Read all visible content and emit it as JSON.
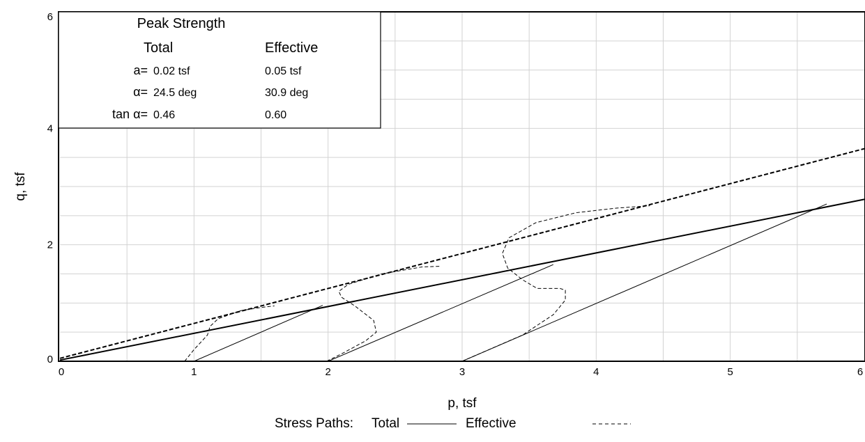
{
  "chart_data": {
    "type": "line",
    "xlabel": "p, tsf",
    "ylabel": "q, tsf",
    "xlim": [
      0,
      6
    ],
    "ylim": [
      0,
      6
    ],
    "x_ticks": [
      "0",
      "1",
      "2",
      "3",
      "4",
      "5",
      "6"
    ],
    "y_ticks": [
      "0",
      "2",
      "4",
      "6"
    ],
    "grid": true,
    "legend": {
      "position": "bottom-center",
      "prefix": "Stress Paths:",
      "total_label": "Total",
      "effective_label": "Effective"
    },
    "strength_table": {
      "title": "Peak Strength",
      "col_total": "Total",
      "col_effective": "Effective",
      "rows": [
        {
          "label": "a=",
          "total": "0.02 tsf",
          "effective": "0.05 tsf"
        },
        {
          "label": "α=",
          "total": "24.5 deg",
          "effective": "30.9 deg"
        },
        {
          "label": "tan α=",
          "total": "0.46",
          "effective": "0.60"
        }
      ]
    },
    "envelopes": [
      {
        "name": "Total",
        "style": "solid",
        "intercept": 0.02,
        "slope": 0.46
      },
      {
        "name": "Effective",
        "style": "dashed",
        "intercept": 0.05,
        "slope": 0.6
      }
    ],
    "series": [
      {
        "style": "solid",
        "x": [
          1.0,
          1.96
        ],
        "y": [
          0.0,
          0.96
        ]
      },
      {
        "style": "solid",
        "x": [
          2.0,
          3.68
        ],
        "y": [
          0.0,
          1.66
        ]
      },
      {
        "style": "solid",
        "x": [
          3.0,
          5.72
        ],
        "y": [
          0.0,
          2.7
        ]
      },
      {
        "style": "dashed",
        "x": [
          0.93,
          1.0,
          1.1,
          1.12,
          1.18,
          1.35,
          1.52,
          1.6
        ],
        "y": [
          0.0,
          0.2,
          0.45,
          0.6,
          0.73,
          0.87,
          0.93,
          0.95
        ]
      },
      {
        "style": "dashed",
        "x": [
          1.99,
          2.12,
          2.28,
          2.36,
          2.34,
          2.2,
          2.1,
          2.08,
          2.15,
          2.4,
          2.7,
          2.83
        ],
        "y": [
          0.0,
          0.15,
          0.35,
          0.5,
          0.7,
          0.95,
          1.1,
          1.2,
          1.32,
          1.5,
          1.62,
          1.63
        ]
      },
      {
        "style": "dashed",
        "x": [
          3.0,
          3.2,
          3.45,
          3.68,
          3.77,
          3.77,
          3.73,
          3.56,
          3.45,
          3.34,
          3.3,
          3.35,
          3.55,
          3.85,
          4.15,
          4.4
        ],
        "y": [
          0.0,
          0.2,
          0.45,
          0.8,
          1.05,
          1.22,
          1.25,
          1.25,
          1.4,
          1.6,
          1.85,
          2.12,
          2.38,
          2.55,
          2.63,
          2.67
        ]
      }
    ]
  }
}
